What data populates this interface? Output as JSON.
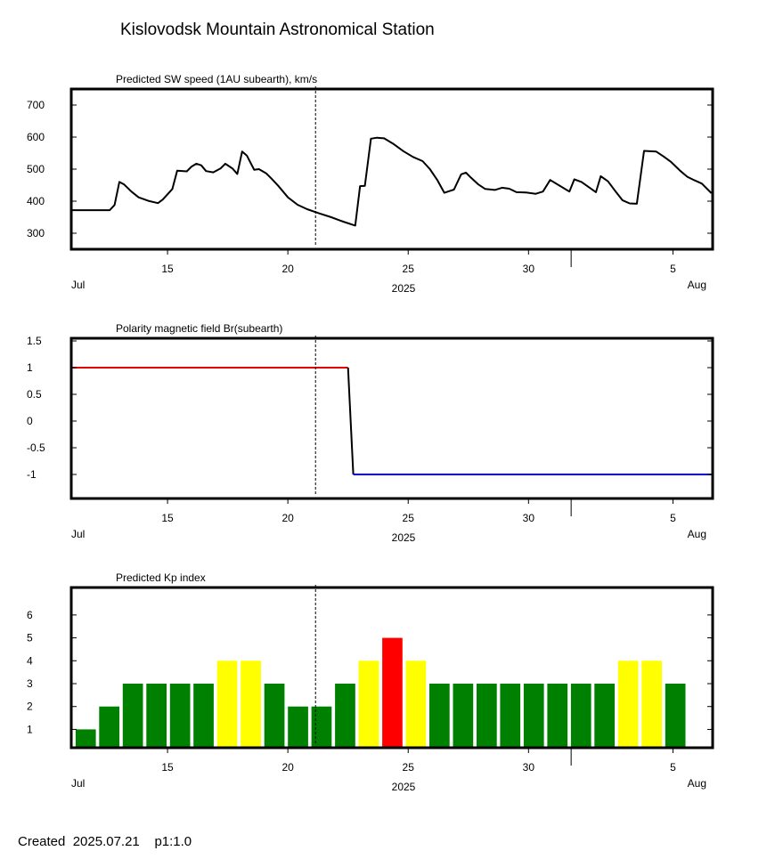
{
  "page": {
    "title": "Kislovodsk Mountain Astronomical Station",
    "footer": "Created  2025.07.21    p1:1.0"
  },
  "time_axis": {
    "ticks": [
      {
        "day": 15,
        "label": "15"
      },
      {
        "day": 20,
        "label": "20"
      },
      {
        "day": 25,
        "label": "25"
      },
      {
        "day": 30,
        "label": "30"
      },
      {
        "day": 36,
        "label": "5"
      }
    ],
    "minor_tick_days": [
      31.77
    ],
    "start_label": "Jul",
    "end_label": "Aug",
    "year_label": "2025",
    "range_days": [
      11.0,
      37.65
    ],
    "current_day": 21.15
  },
  "chart_data": [
    {
      "type": "line",
      "title": "Predicted SW speed (1AU subearth), km/s",
      "xlabel": "",
      "ylabel": "",
      "ylim": [
        250,
        750
      ],
      "yticks": [
        300,
        400,
        500,
        600,
        700
      ],
      "series": [
        {
          "color": "#000000",
          "x": [
            11.0,
            12.6,
            12.8,
            13.0,
            13.2,
            13.5,
            13.8,
            14.2,
            14.6,
            14.8,
            15.2,
            15.4,
            15.8,
            16.0,
            16.2,
            16.4,
            16.6,
            16.9,
            17.2,
            17.4,
            17.7,
            17.9,
            18.1,
            18.3,
            18.6,
            18.8,
            19.1,
            19.3,
            19.6,
            20.0,
            20.4,
            20.8,
            21.3,
            21.8,
            22.3,
            22.8,
            23.0,
            23.2,
            23.45,
            23.7,
            24.0,
            24.4,
            24.8,
            25.2,
            25.6,
            25.9,
            26.2,
            26.5,
            26.9,
            27.2,
            27.4,
            27.6,
            27.9,
            28.2,
            28.6,
            28.9,
            29.2,
            29.5,
            29.9,
            30.3,
            30.6,
            30.9,
            31.7,
            31.9,
            32.2,
            32.5,
            32.8,
            33.0,
            33.3,
            33.6,
            33.9,
            34.2,
            34.5,
            34.8,
            35.3,
            35.6,
            35.9,
            36.3,
            36.6,
            36.9,
            37.2,
            37.6
          ],
          "values": [
            372,
            372,
            388,
            460,
            452,
            430,
            412,
            401,
            394,
            405,
            438,
            495,
            493,
            508,
            517,
            512,
            494,
            490,
            502,
            517,
            502,
            485,
            555,
            542,
            498,
            500,
            487,
            472,
            448,
            412,
            389,
            375,
            362,
            350,
            336,
            324,
            447,
            448,
            595,
            598,
            596,
            578,
            556,
            538,
            525,
            500,
            467,
            426,
            436,
            484,
            489,
            474,
            453,
            438,
            435,
            442,
            439,
            428,
            427,
            423,
            430,
            466,
            430,
            468,
            460,
            444,
            428,
            478,
            462,
            432,
            403,
            393,
            392,
            557,
            555,
            540,
            524,
            495,
            476,
            465,
            455,
            425
          ]
        }
      ]
    },
    {
      "type": "line",
      "title": "Polarity magnetic field  Br(subearth)",
      "xlabel": "",
      "ylabel": "",
      "ylim": [
        -1.45,
        1.55
      ],
      "yticks": [
        -1,
        -0.5,
        0,
        0.5,
        1,
        1.5
      ],
      "ytick_labels": [
        "-1",
        "-0.5",
        "0",
        "0.5",
        "1",
        "1.5"
      ],
      "series": [
        {
          "color": "#e60000",
          "x": [
            11.0,
            22.5
          ],
          "values": [
            1,
            1
          ]
        },
        {
          "color": "#000000",
          "x": [
            22.5,
            22.72
          ],
          "values": [
            1,
            -1
          ]
        },
        {
          "color": "#0000cc",
          "x": [
            22.72,
            37.65
          ],
          "values": [
            -1,
            -1
          ]
        }
      ]
    },
    {
      "type": "bar",
      "title": "Predicted Kp index",
      "xlabel": "",
      "ylabel": "",
      "ylim": [
        0.2,
        7.2
      ],
      "yticks": [
        1,
        2,
        3,
        4,
        5,
        6
      ],
      "bar_width_days": 0.84,
      "bars": [
        {
          "day": 11.6,
          "value": 1,
          "color": "#008000"
        },
        {
          "day": 12.58,
          "value": 2,
          "color": "#008000"
        },
        {
          "day": 13.56,
          "value": 3,
          "color": "#008000"
        },
        {
          "day": 14.54,
          "value": 3,
          "color": "#008000"
        },
        {
          "day": 15.52,
          "value": 3,
          "color": "#008000"
        },
        {
          "day": 16.5,
          "value": 3,
          "color": "#008000"
        },
        {
          "day": 17.48,
          "value": 4,
          "color": "#ffff00"
        },
        {
          "day": 18.46,
          "value": 4,
          "color": "#ffff00"
        },
        {
          "day": 19.44,
          "value": 3,
          "color": "#008000"
        },
        {
          "day": 20.42,
          "value": 2,
          "color": "#008000"
        },
        {
          "day": 21.4,
          "value": 2,
          "color": "#008000"
        },
        {
          "day": 22.38,
          "value": 3,
          "color": "#008000"
        },
        {
          "day": 23.36,
          "value": 4,
          "color": "#ffff00"
        },
        {
          "day": 24.34,
          "value": 5,
          "color": "#ff0000"
        },
        {
          "day": 25.32,
          "value": 4,
          "color": "#ffff00"
        },
        {
          "day": 26.3,
          "value": 3,
          "color": "#008000"
        },
        {
          "day": 27.28,
          "value": 3,
          "color": "#008000"
        },
        {
          "day": 28.26,
          "value": 3,
          "color": "#008000"
        },
        {
          "day": 29.24,
          "value": 3,
          "color": "#008000"
        },
        {
          "day": 30.22,
          "value": 3,
          "color": "#008000"
        },
        {
          "day": 31.2,
          "value": 3,
          "color": "#008000"
        },
        {
          "day": 32.18,
          "value": 3,
          "color": "#008000"
        },
        {
          "day": 33.16,
          "value": 3,
          "color": "#008000"
        },
        {
          "day": 34.14,
          "value": 4,
          "color": "#ffff00"
        },
        {
          "day": 35.12,
          "value": 4,
          "color": "#ffff00"
        },
        {
          "day": 36.1,
          "value": 3,
          "color": "#008000"
        }
      ]
    }
  ]
}
